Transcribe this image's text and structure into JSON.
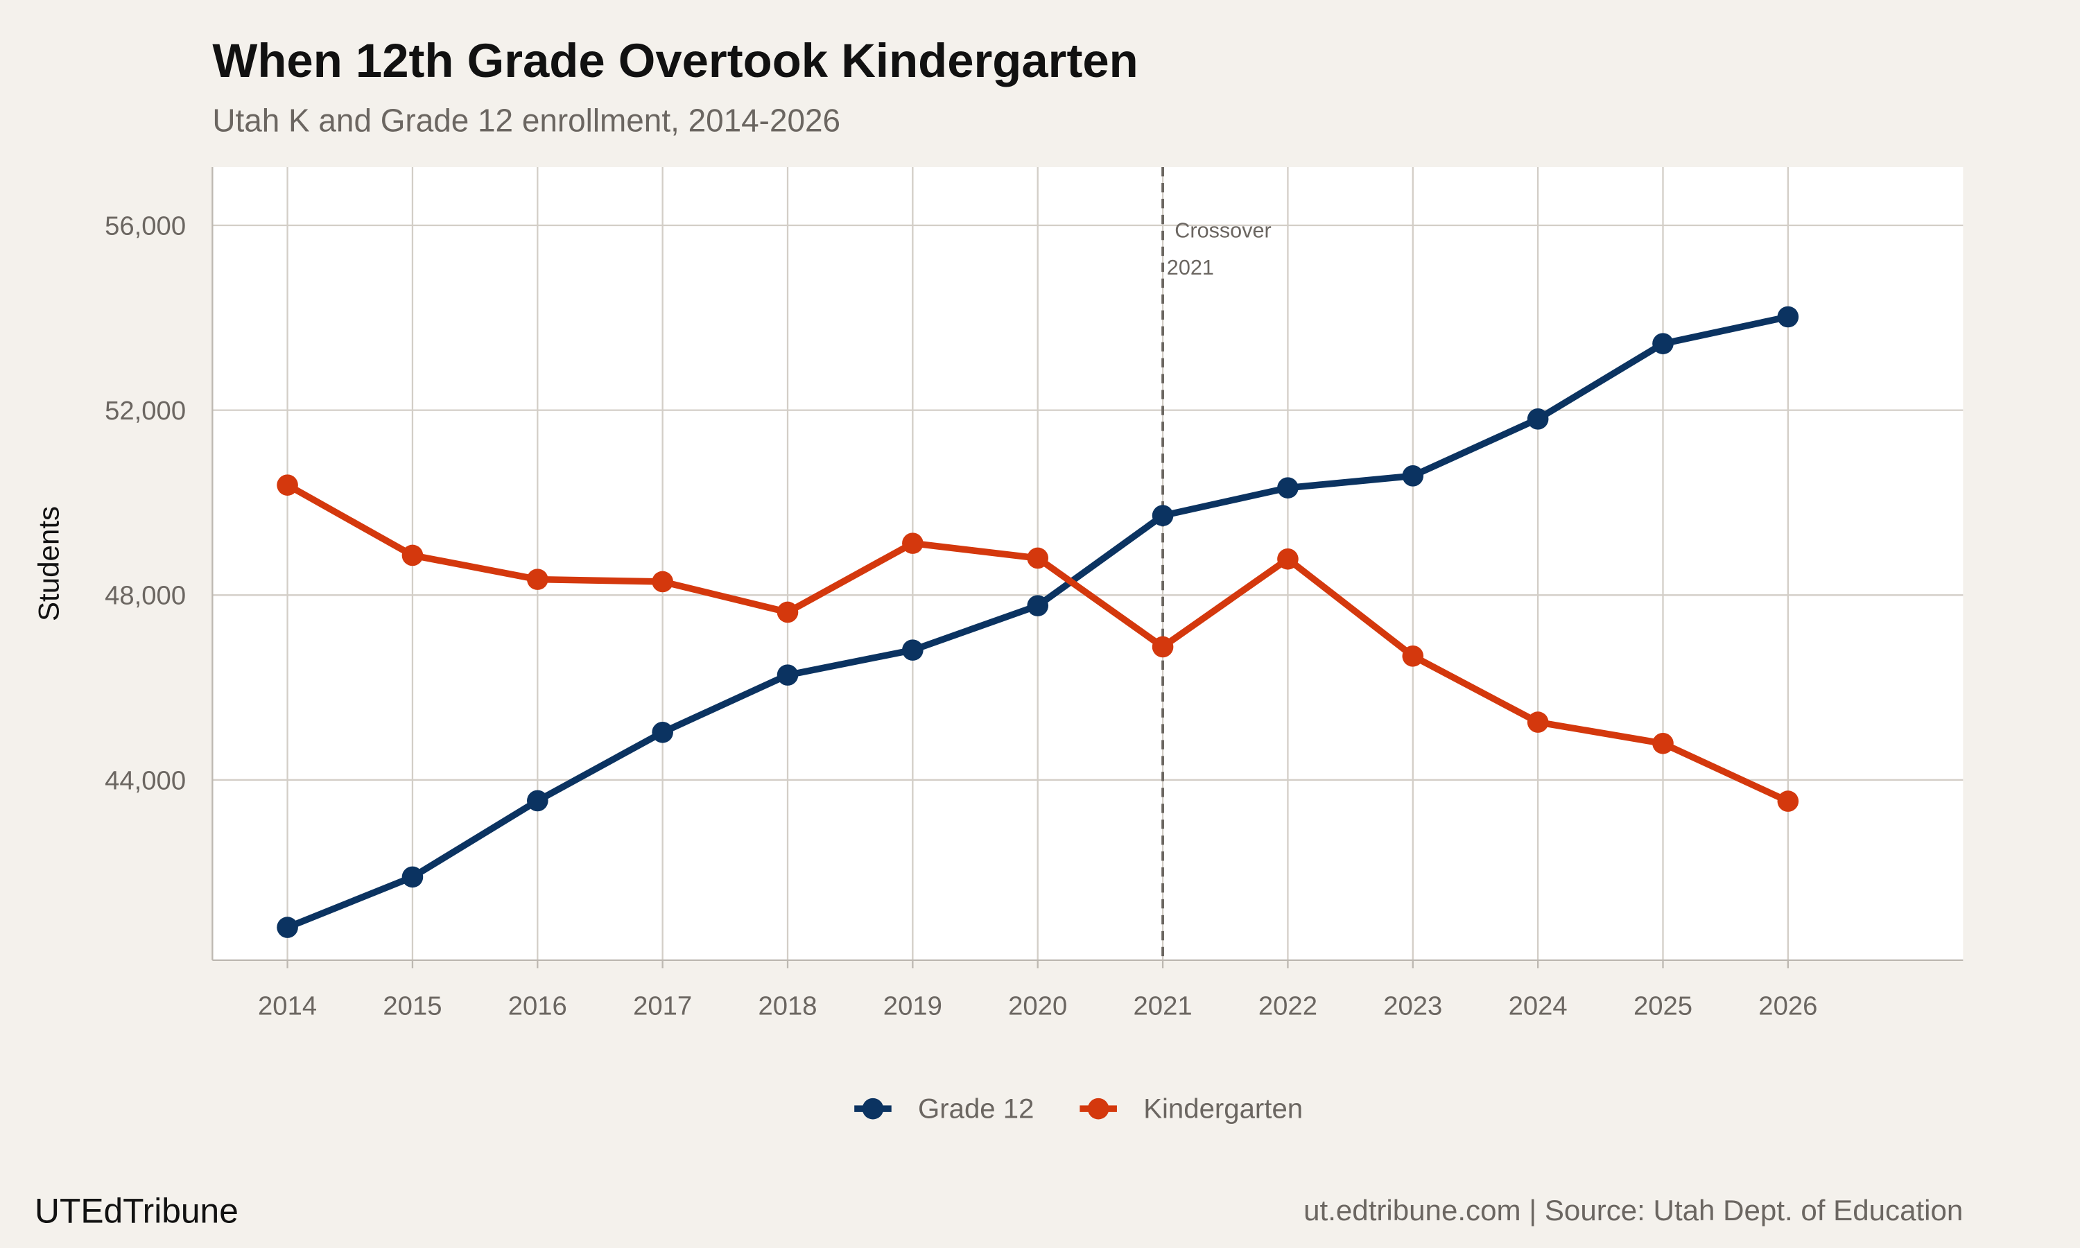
{
  "chart_data": {
    "type": "line",
    "title": "When 12th Grade Overtook Kindergarten",
    "subtitle": "Utah K and Grade 12 enrollment, 2014-2026",
    "xlabel": "",
    "ylabel": "Students",
    "x": [
      2014,
      2015,
      2016,
      2017,
      2018,
      2019,
      2020,
      2021,
      2022,
      2023,
      2024,
      2025,
      2026
    ],
    "x_tick_labels": [
      "2014",
      "2015",
      "2016",
      "2017",
      "2018",
      "2019",
      "2020",
      "2021",
      "2022",
      "2023",
      "2024",
      "2025",
      "2026"
    ],
    "y_ticks": [
      44000,
      48000,
      52000,
      56000
    ],
    "y_tick_labels": [
      "44,000",
      "48,000",
      "52,000",
      "56,000"
    ],
    "xlim": [
      2013.4,
      2027.4
    ],
    "ylim": [
      40100,
      57260
    ],
    "grid": true,
    "legend_position": "bottom",
    "series": [
      {
        "name": "Grade 12",
        "color": "#0b3361",
        "values": [
          40810,
          41900,
          43550,
          45030,
          46270,
          46810,
          47770,
          49720,
          50320,
          50580,
          51810,
          53440,
          54020
        ]
      },
      {
        "name": "Kindergarten",
        "color": "#d4380d",
        "values": [
          50380,
          48860,
          48340,
          48290,
          47630,
          49120,
          48800,
          46880,
          48780,
          46680,
          45250,
          44790,
          43540
        ]
      }
    ],
    "annotation": {
      "x": 2021,
      "line1": "Crossover",
      "line2": "2021",
      "style": "dashed vertical line"
    }
  },
  "footer": {
    "brand": "UTEdTribune",
    "source": "ut.edtribune.com | Source: Utah Dept. of Education"
  },
  "colors": {
    "background": "#f4f1ec",
    "panel": "#ffffff",
    "grid": "#d3cec7"
  }
}
